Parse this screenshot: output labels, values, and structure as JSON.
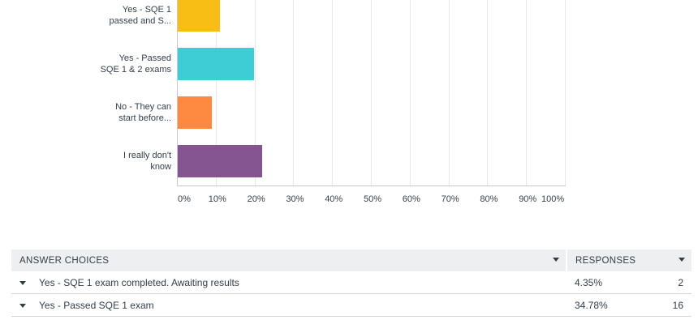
{
  "chart_data": {
    "type": "bar",
    "orientation": "horizontal",
    "categories": [
      "Yes - SQE 1 passed and S...",
      "Yes - Passed SQE 1 & 2 exams",
      "No - They can start before...",
      "I really don't know"
    ],
    "category_lines": [
      [
        "Yes - SQE 1",
        "passed and S..."
      ],
      [
        "Yes - Passed",
        "SQE 1 & 2 exams"
      ],
      [
        "No - They can",
        "start before..."
      ],
      [
        "I really don't",
        "know"
      ]
    ],
    "values": [
      10.9,
      19.6,
      8.7,
      21.7
    ],
    "colors": [
      "#f8be15",
      "#3ecdd4",
      "#fd8a40",
      "#855591"
    ],
    "xlim": [
      0,
      100
    ],
    "x_ticks": [
      "0%",
      "10%",
      "20%",
      "30%",
      "40%",
      "50%",
      "60%",
      "70%",
      "80%",
      "90%",
      "100%"
    ],
    "grid": true
  },
  "table": {
    "headers": {
      "choices": "ANSWER CHOICES",
      "responses": "RESPONSES"
    },
    "rows": [
      {
        "choice": "Yes - SQE 1 exam completed. Awaiting results",
        "percent": "4.35%",
        "count": "2"
      },
      {
        "choice": "Yes - Passed SQE 1 exam",
        "percent": "34.78%",
        "count": "16"
      }
    ]
  }
}
